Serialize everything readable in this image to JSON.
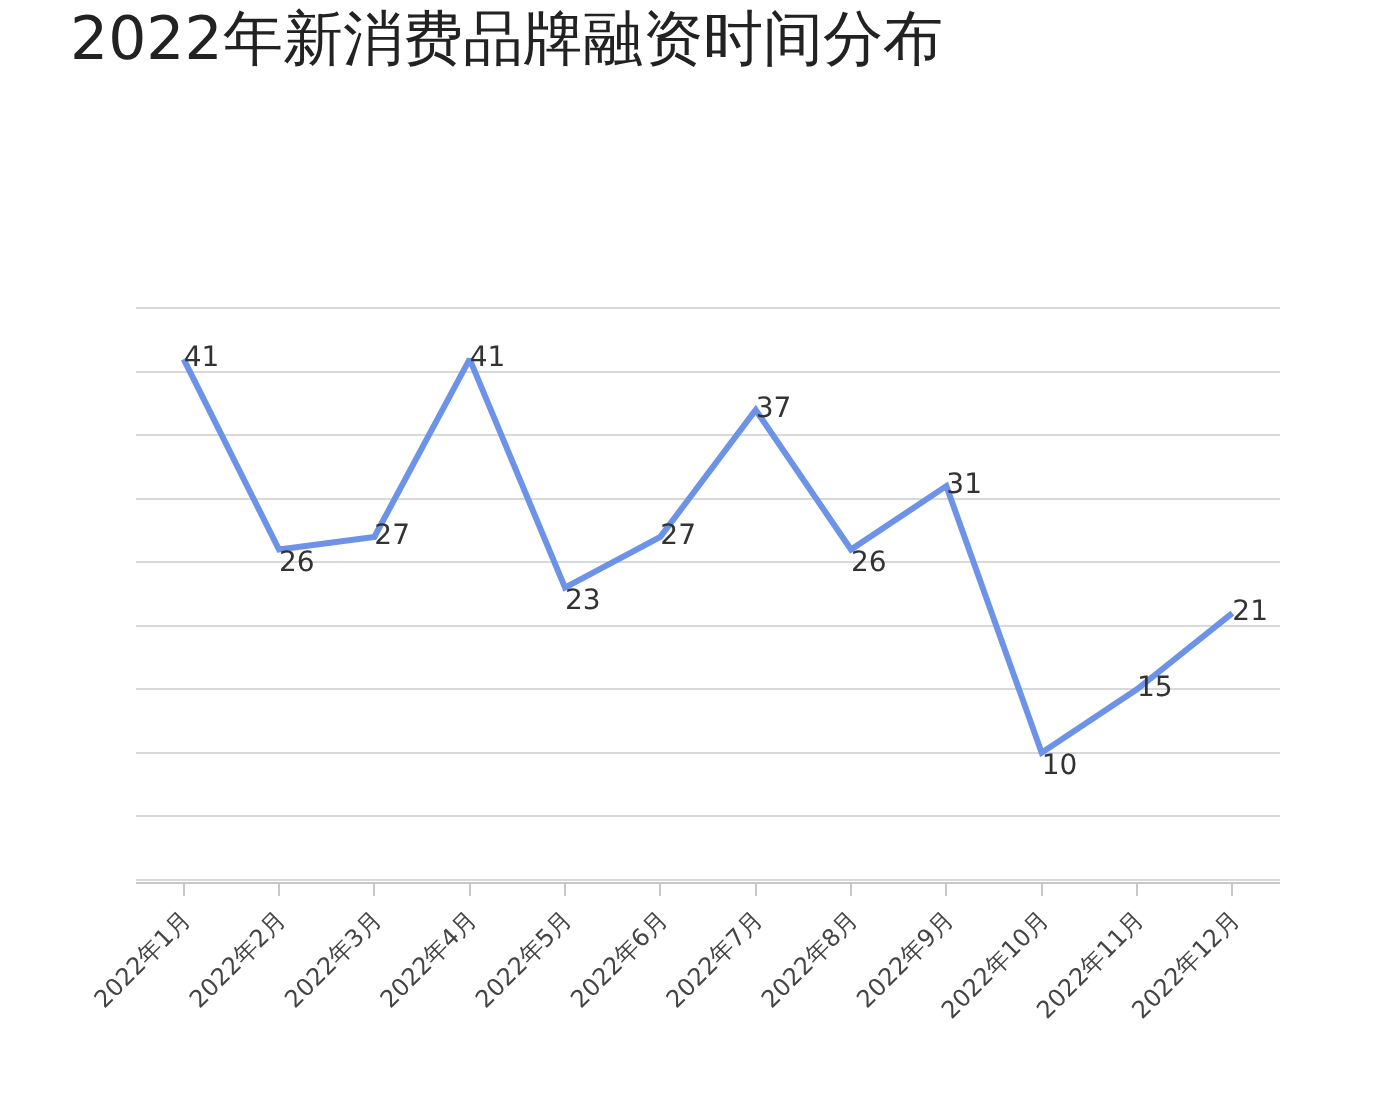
{
  "chart_data": {
    "type": "line",
    "title": "2022年新消费品牌融资时间分布",
    "categories": [
      "2022年1月",
      "2022年2月",
      "2022年3月",
      "2022年4月",
      "2022年5月",
      "2022年6月",
      "2022年7月",
      "2022年8月",
      "2022年9月",
      "2022年10月",
      "2022年11月",
      "2022年12月"
    ],
    "series": [
      {
        "color": "#6d93e8",
        "values": [
          41,
          26,
          27,
          41,
          23,
          27,
          37,
          26,
          31,
          10,
          15,
          21
        ]
      }
    ],
    "yticks": [
      {
        "value": 0,
        "label": null
      },
      {
        "value": 5,
        "label": null
      },
      {
        "value": 10,
        "label": null
      },
      {
        "value": 15,
        "label": null
      },
      {
        "value": 20,
        "label": null
      },
      {
        "value": 25,
        "label": null
      },
      {
        "value": 30,
        "label": null
      },
      {
        "value": 35,
        "label": null
      },
      {
        "value": 40,
        "label": null
      },
      {
        "value": 45,
        "label": null
      }
    ],
    "grid": "y",
    "tick_labels": "x",
    "data_labels": true,
    "marker": "none",
    "line_style": "solid"
  }
}
